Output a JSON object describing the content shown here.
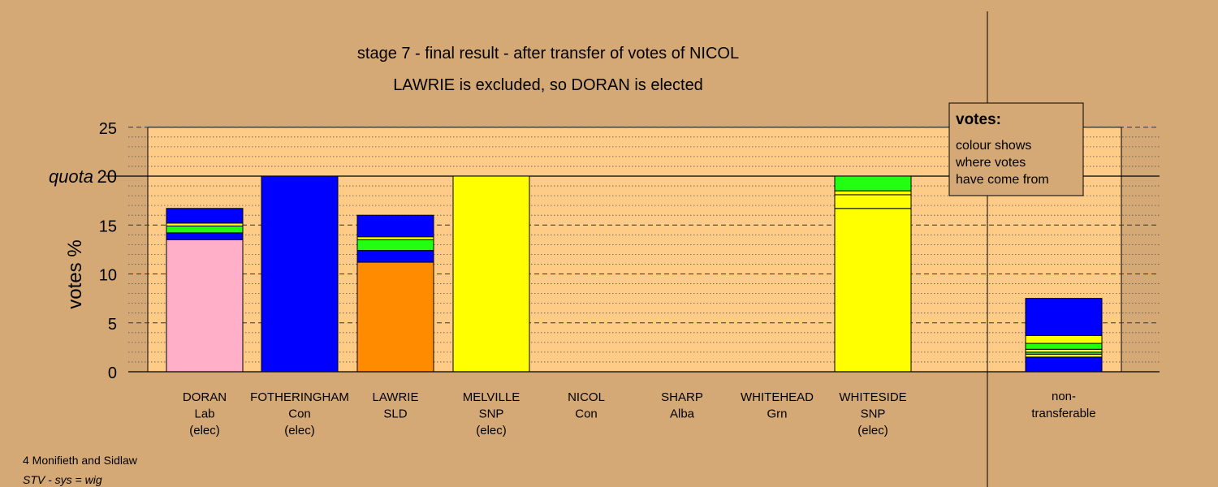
{
  "footer": {
    "constituency": "4 Monifieth and Sidlaw",
    "system": "STV - sys = wig"
  },
  "chart_data": {
    "type": "bar",
    "stacked": true,
    "title": "stage 7 - final result - after transfer of votes of NICOL",
    "subtitle": "LAWRIE is excluded, so DORAN is elected",
    "ylabel": "votes %",
    "ylim": [
      0,
      25
    ],
    "yticks": [
      0,
      5,
      10,
      15,
      20,
      25
    ],
    "quota": 20,
    "quota_label": "quota",
    "grid": true,
    "legend": {
      "position": "top-right",
      "title": "votes:",
      "lines": [
        "colour shows",
        "where votes",
        "have come from"
      ]
    },
    "colors": {
      "background": "#D5A976",
      "plot_area": "#FFCC88",
      "pink": "#FFB0C8",
      "blue": "#0000FF",
      "orange": "#FF8C00",
      "yellow": "#FFFF00",
      "green": "#22FF11",
      "outline": "#000000"
    },
    "candidates": [
      {
        "name": "DORAN",
        "party": "Lab",
        "status": "(elec)",
        "segments": [
          {
            "color": "#FFB0C8",
            "value": 13.5
          },
          {
            "color": "#0000FF",
            "value": 0.7
          },
          {
            "color": "#22FF11",
            "value": 0.7
          },
          {
            "color": "#FFFF00",
            "value": 0.3
          },
          {
            "color": "#0000FF",
            "value": 1.5
          }
        ]
      },
      {
        "name": "FOTHERINGHAM",
        "party": "Con",
        "status": "(elec)",
        "segments": [
          {
            "color": "#0000FF",
            "value": 20.0
          }
        ]
      },
      {
        "name": "LAWRIE",
        "party": "SLD",
        "status": "",
        "segments": [
          {
            "color": "#FF8C00",
            "value": 11.2
          },
          {
            "color": "#0000FF",
            "value": 1.2
          },
          {
            "color": "#22FF11",
            "value": 1.1
          },
          {
            "color": "#FFFF00",
            "value": 0.3
          },
          {
            "color": "#0000FF",
            "value": 2.2
          }
        ]
      },
      {
        "name": "MELVILLE",
        "party": "SNP",
        "status": "(elec)",
        "segments": [
          {
            "color": "#FFFF00",
            "value": 20.0
          }
        ]
      },
      {
        "name": "NICOL",
        "party": "Con",
        "status": "",
        "segments": []
      },
      {
        "name": "SHARP",
        "party": "Alba",
        "status": "",
        "segments": []
      },
      {
        "name": "WHITEHEAD",
        "party": "Grn",
        "status": "",
        "segments": []
      },
      {
        "name": "WHITESIDE",
        "party": "SNP",
        "status": "(elec)",
        "segments": [
          {
            "color": "#FFFF00",
            "value": 16.7
          },
          {
            "color": "#FFFF00",
            "value": 1.4
          },
          {
            "color": "#FFFF00",
            "value": 0.4
          },
          {
            "color": "#22FF11",
            "value": 1.5
          }
        ]
      }
    ],
    "nontransferable": {
      "label_lines": [
        "non-",
        "transferable"
      ],
      "segments": [
        {
          "color": "#0000FF",
          "value": 1.5
        },
        {
          "color": "#FFFF00",
          "value": 0.3
        },
        {
          "color": "#22FF11",
          "value": 0.2
        },
        {
          "color": "#FFFF00",
          "value": 0.3
        },
        {
          "color": "#22FF11",
          "value": 0.6
        },
        {
          "color": "#FFFF00",
          "value": 0.8
        },
        {
          "color": "#0000FF",
          "value": 3.8
        }
      ]
    }
  }
}
